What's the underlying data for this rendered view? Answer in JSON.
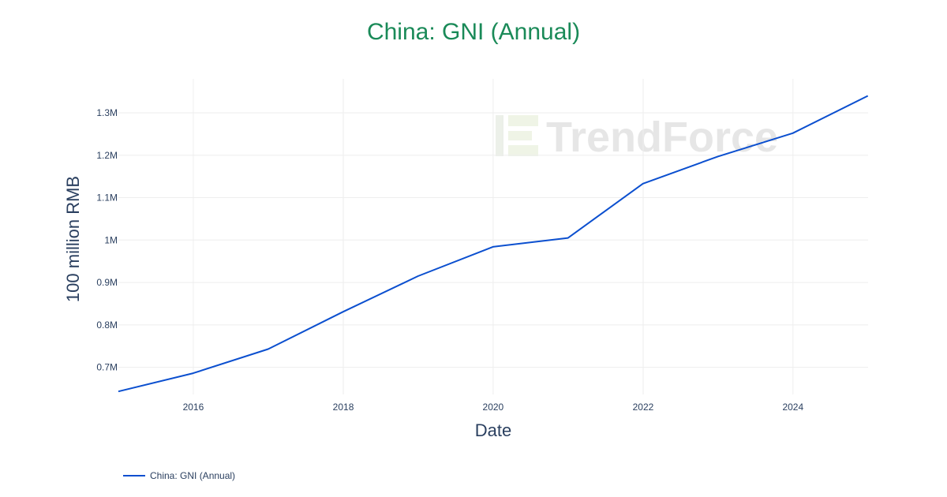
{
  "chart_data": {
    "type": "line",
    "title": "China: GNI (Annual)",
    "title_color": "#1a8a58",
    "xlabel": "Date",
    "ylabel": "100 million RMB",
    "x_ticks": [
      "2016",
      "2018",
      "2020",
      "2022",
      "2024"
    ],
    "y_ticks": [
      "0.7M",
      "0.8M",
      "0.9M",
      "1M",
      "1.1M",
      "1.2M",
      "1.3M"
    ],
    "y_tick_values": [
      700000,
      800000,
      900000,
      1000000,
      1100000,
      1200000,
      1300000
    ],
    "xlim": [
      "2015-01-01",
      "2025-01-01"
    ],
    "ylim": [
      636000,
      1380000
    ],
    "grid": true,
    "legend_position": "bottom-left",
    "series": [
      {
        "name": "China: GNI (Annual)",
        "color": "#0b4fcf",
        "x": [
          "2015-01-01",
          "2015-12-31",
          "2016-12-31",
          "2017-12-31",
          "2018-12-31",
          "2019-12-31",
          "2020-12-31",
          "2021-12-31",
          "2022-12-31",
          "2023-12-31",
          "2024-12-31"
        ],
        "y": [
          643000,
          686000,
          743000,
          831000,
          915000,
          984000,
          1005000,
          1133000,
          1197000,
          1252000,
          1340000
        ]
      }
    ],
    "watermark": "TrendForce"
  }
}
